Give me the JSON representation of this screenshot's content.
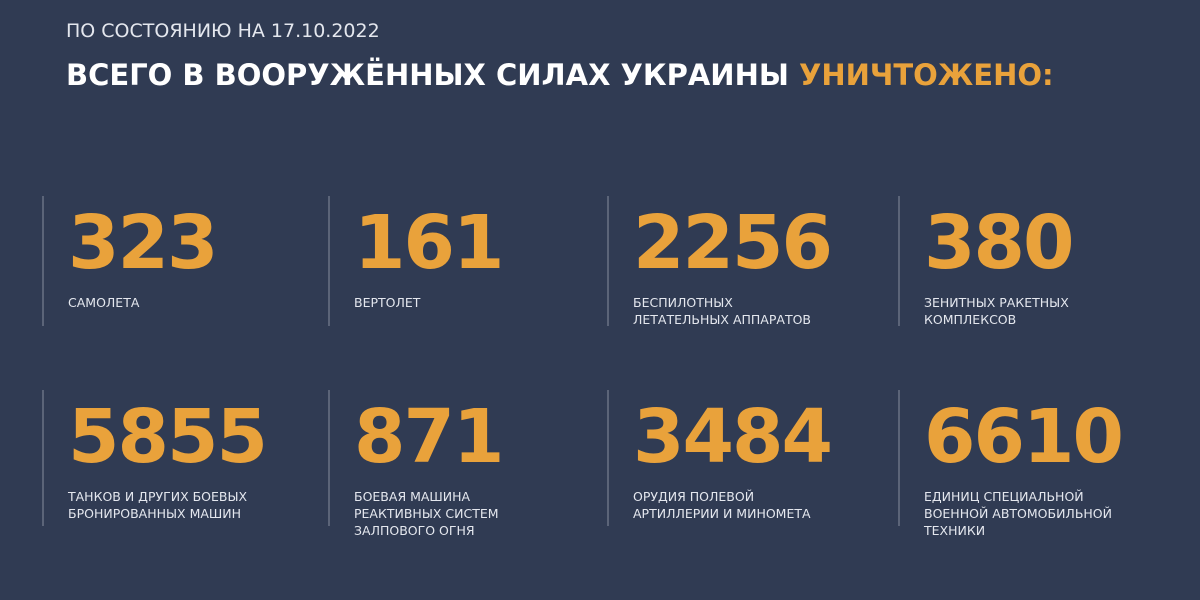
{
  "header": {
    "subtitle": "ПО СОСТОЯНИЮ НА 17.10.2022",
    "title_main": "ВСЕГО В ВООРУЖЁННЫХ СИЛАХ УКРАИНЫ",
    "title_accent": "УНИЧТОЖЕНО:"
  },
  "colors": {
    "background": "#303b53",
    "accent": "#e9a23b",
    "text": "#ffffff"
  },
  "stats": [
    {
      "value": "323",
      "label": "САМОЛЕТА"
    },
    {
      "value": "161",
      "label": "ВЕРТОЛЕТ"
    },
    {
      "value": "2256",
      "label": "БЕСПИЛОТНЫХ\nЛЕТАТЕЛЬНЫХ АППАРАТОВ"
    },
    {
      "value": "380",
      "label": "ЗЕНИТНЫХ РАКЕТНЫХ\nКОМПЛЕКСОВ"
    },
    {
      "value": "5855",
      "label": "ТАНКОВ И ДРУГИХ БОЕВЫХ\nБРОНИРОВАННЫХ МАШИН"
    },
    {
      "value": "871",
      "label": "БОЕВАЯ МАШИНА\nРЕАКТИВНЫХ СИСТЕМ\nЗАЛПОВОГО ОГНЯ"
    },
    {
      "value": "3484",
      "label": "ОРУДИЯ ПОЛЕВОЙ\nАРТИЛЛЕРИИ И МИНОМЕТА"
    },
    {
      "value": "6610",
      "label": "ЕДИНИЦ СПЕЦИАЛЬНОЙ\nВОЕННОЙ АВТОМОБИЛЬНОЙ\nТЕХНИКИ"
    }
  ]
}
